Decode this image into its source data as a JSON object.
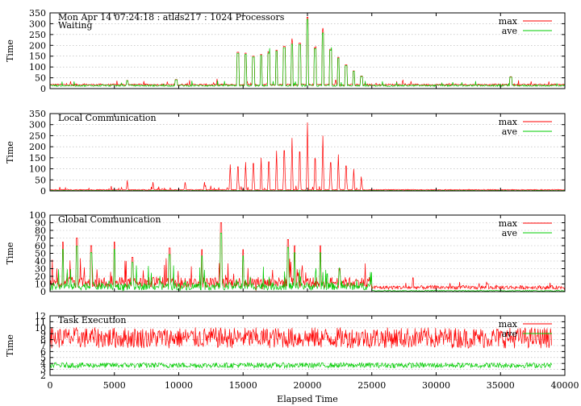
{
  "chart_data": [
    {
      "type": "line",
      "title": "Mon Apr 14 07:24:18 : atlas217 : 1024 Processors",
      "subtitle": "Waiting",
      "ylabel": "Time",
      "ylim": [
        0,
        350
      ],
      "yticks": [
        0,
        50,
        100,
        150,
        200,
        250,
        300,
        350
      ],
      "xlim": [
        0,
        40000
      ],
      "grid": true,
      "legend": "top-right",
      "series": [
        {
          "name": "max",
          "color": "#ff0000",
          "x": [
            0,
            5000,
            10000,
            13500,
            14500,
            16000,
            17500,
            18500,
            19500,
            20000,
            21000,
            22000,
            23000,
            24000,
            25000,
            30000,
            35000,
            36000,
            40000
          ],
          "values": [
            15,
            25,
            25,
            30,
            165,
            160,
            175,
            190,
            210,
            330,
            265,
            190,
            160,
            125,
            20,
            20,
            20,
            55,
            20
          ]
        },
        {
          "name": "ave",
          "color": "#00cc00",
          "x": [
            0,
            5000,
            10000,
            13500,
            14500,
            16000,
            17500,
            18500,
            19500,
            20000,
            21000,
            22000,
            23000,
            24000,
            25000,
            30000,
            35000,
            36000,
            40000
          ],
          "values": [
            10,
            20,
            20,
            25,
            160,
            155,
            170,
            185,
            205,
            325,
            260,
            185,
            155,
            120,
            15,
            15,
            15,
            50,
            15
          ]
        }
      ]
    },
    {
      "type": "line",
      "title": "Local Communication",
      "ylabel": "Time",
      "ylim": [
        0,
        350
      ],
      "yticks": [
        0,
        50,
        100,
        150,
        200,
        250,
        300,
        350
      ],
      "xlim": [
        0,
        40000
      ],
      "grid": true,
      "legend": "top-right",
      "series": [
        {
          "name": "max",
          "color": "#ff0000",
          "x": [
            0,
            5000,
            10000,
            13000,
            15000,
            17000,
            18500,
            20000,
            21000,
            22500,
            24000,
            25000,
            30000,
            40000
          ],
          "values": [
            5,
            40,
            40,
            50,
            120,
            160,
            240,
            310,
            250,
            150,
            100,
            10,
            10,
            10
          ]
        },
        {
          "name": "ave",
          "color": "#00cc00",
          "x": [
            0,
            40000
          ],
          "values": [
            2,
            2
          ]
        }
      ]
    },
    {
      "type": "line",
      "title": "Global Communication",
      "ylabel": "Time",
      "ylim": [
        0,
        100
      ],
      "yticks": [
        0,
        10,
        20,
        30,
        40,
        50,
        60,
        70,
        80,
        90,
        100
      ],
      "xlim": [
        0,
        40000
      ],
      "grid": true,
      "legend": "top-right",
      "series": [
        {
          "name": "max",
          "color": "#ff0000",
          "x": [
            0,
            2000,
            5000,
            9500,
            13300,
            15000,
            18500,
            21000,
            24000,
            25000,
            30000,
            40000
          ],
          "values": [
            20,
            70,
            45,
            55,
            90,
            60,
            67,
            60,
            45,
            6,
            6,
            6
          ]
        },
        {
          "name": "ave",
          "color": "#00cc00",
          "x": [
            0,
            2000,
            5000,
            9500,
            13300,
            15000,
            18500,
            21000,
            24000,
            25000,
            30000,
            40000
          ],
          "values": [
            10,
            30,
            35,
            50,
            90,
            35,
            40,
            55,
            40,
            1,
            1,
            1
          ]
        }
      ]
    },
    {
      "type": "line",
      "title": "Task Execution",
      "ylabel": "Time",
      "xlabel": "Elapsed Time",
      "ylim": [
        2,
        12
      ],
      "yticks": [
        2,
        3,
        4,
        5,
        6,
        7,
        8,
        9,
        10,
        11,
        12
      ],
      "xlim": [
        0,
        40000
      ],
      "xticks": [
        0,
        5000,
        10000,
        15000,
        20000,
        25000,
        30000,
        35000,
        40000
      ],
      "grid": true,
      "legend": "top-right",
      "series": [
        {
          "name": "max",
          "color": "#ff0000",
          "x": [
            0,
            5000,
            10000,
            15000,
            20000,
            25000,
            30000,
            35000,
            39000
          ],
          "values": [
            8,
            8.5,
            8.5,
            8.5,
            8.5,
            8.5,
            8.5,
            8.5,
            8.5
          ]
        },
        {
          "name": "ave",
          "color": "#00cc00",
          "x": [
            0,
            5000,
            10000,
            15000,
            20000,
            25000,
            30000,
            35000,
            39000
          ],
          "values": [
            3.5,
            3.7,
            3.8,
            3.8,
            3.8,
            3.8,
            3.8,
            3.8,
            3.8
          ]
        }
      ]
    }
  ]
}
